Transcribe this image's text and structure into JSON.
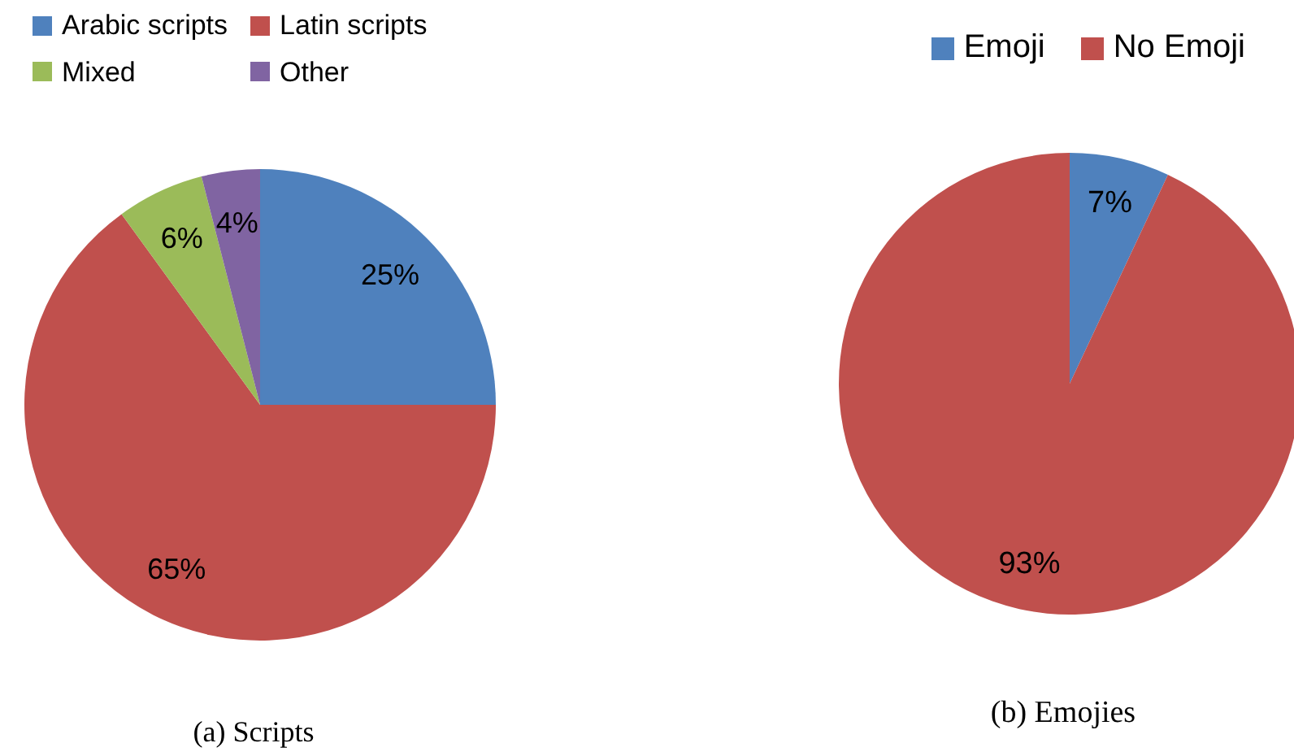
{
  "chart_data": [
    {
      "type": "pie",
      "categories": [
        "Arabic scripts",
        "Latin scripts",
        "Mixed",
        "Other"
      ],
      "values": [
        25,
        65,
        6,
        4
      ],
      "colors": [
        "#4f81bd",
        "#c0504d",
        "#9bbb59",
        "#8064a2"
      ],
      "value_labels": [
        "25%",
        "65%",
        "6%",
        "4%"
      ],
      "legend": "top left",
      "annotations": [
        "(a) Scripts"
      ]
    },
    {
      "type": "pie",
      "categories": [
        "Emoji",
        "No Emoji"
      ],
      "values": [
        7,
        93
      ],
      "colors": [
        "#4f81bd",
        "#c0504d"
      ],
      "value_labels": [
        "7%",
        "93%"
      ],
      "legend": "top right",
      "annotations": [
        "(b) Emojies"
      ]
    }
  ]
}
